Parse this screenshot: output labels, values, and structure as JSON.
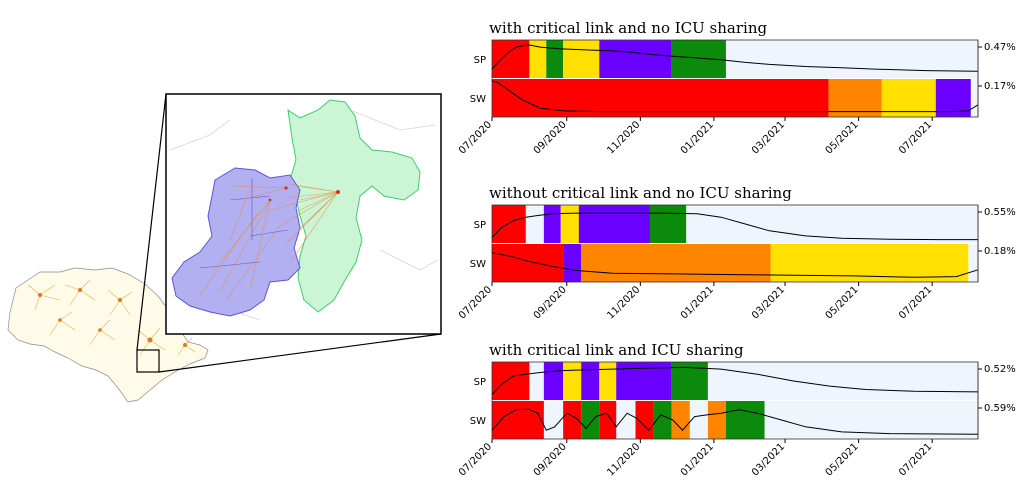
{
  "map_panel": {
    "regions": [
      "State of São Paulo",
      "inset region"
    ],
    "legend": ""
  },
  "chart_data": [
    {
      "type": "timeline",
      "title": "with critical link and no ICU sharing",
      "x_ticks": [
        "07/2020",
        "09/2020",
        "11/2020",
        "01/2021",
        "03/2021",
        "05/2021",
        "07/2021"
      ],
      "x_range": [
        "2020-07-01",
        "2021-08-08"
      ],
      "rows": [
        {
          "label": "SP",
          "peak_label": "0.47%",
          "segments": [
            {
              "start": "2020-07-01",
              "end": "2020-08-01",
              "level": "red"
            },
            {
              "start": "2020-08-01",
              "end": "2020-08-15",
              "level": "yellow"
            },
            {
              "start": "2020-08-15",
              "end": "2020-08-29",
              "level": "green"
            },
            {
              "start": "2020-08-29",
              "end": "2020-09-28",
              "level": "yellow"
            },
            {
              "start": "2020-09-28",
              "end": "2020-11-27",
              "level": "purple"
            },
            {
              "start": "2020-11-27",
              "end": "2021-01-11",
              "level": "green"
            }
          ],
          "curve": [
            [
              0,
              0.8
            ],
            [
              5,
              0.6
            ],
            [
              12,
              0.35
            ],
            [
              20,
              0.15
            ],
            [
              30,
              0.08
            ],
            [
              40,
              0.15
            ],
            [
              55,
              0.2
            ],
            [
              70,
              0.22
            ],
            [
              85,
              0.24
            ],
            [
              100,
              0.26
            ],
            [
              115,
              0.3
            ],
            [
              130,
              0.36
            ],
            [
              150,
              0.42
            ],
            [
              170,
              0.47
            ],
            [
              190,
              0.52
            ],
            [
              210,
              0.6
            ],
            [
              230,
              0.66
            ],
            [
              260,
              0.72
            ],
            [
              290,
              0.76
            ],
            [
              320,
              0.8
            ],
            [
              360,
              0.84
            ],
            [
              403,
              0.86
            ]
          ]
        },
        {
          "label": "SW",
          "peak_label": "0.17%",
          "segments": [
            {
              "start": "2020-07-01",
              "end": "2021-04-06",
              "level": "red"
            },
            {
              "start": "2021-04-06",
              "end": "2021-05-20",
              "level": "orange"
            },
            {
              "start": "2021-05-20",
              "end": "2021-07-04",
              "level": "yellow"
            },
            {
              "start": "2021-07-04",
              "end": "2021-08-02",
              "level": "purple"
            }
          ],
          "curve": [
            [
              0,
              0.0
            ],
            [
              5,
              0.05
            ],
            [
              15,
              0.3
            ],
            [
              25,
              0.55
            ],
            [
              40,
              0.8
            ],
            [
              60,
              0.88
            ],
            [
              90,
              0.9
            ],
            [
              200,
              0.9
            ],
            [
              300,
              0.9
            ],
            [
              380,
              0.9
            ],
            [
              395,
              0.88
            ],
            [
              403,
              0.7
            ]
          ]
        }
      ]
    },
    {
      "type": "timeline",
      "title": "without critical link and no ICU sharing",
      "x_ticks": [
        "07/2020",
        "09/2020",
        "11/2020",
        "01/2021",
        "03/2021",
        "05/2021",
        "07/2021"
      ],
      "x_range": [
        "2020-07-01",
        "2021-08-08"
      ],
      "rows": [
        {
          "label": "SP",
          "peak_label": "0.55%",
          "segments": [
            {
              "start": "2020-07-01",
              "end": "2020-07-29",
              "level": "red"
            },
            {
              "start": "2020-08-13",
              "end": "2020-08-27",
              "level": "purple"
            },
            {
              "start": "2020-08-27",
              "end": "2020-09-11",
              "level": "yellow"
            },
            {
              "start": "2020-09-11",
              "end": "2020-11-09",
              "level": "purple"
            },
            {
              "start": "2020-11-09",
              "end": "2020-12-09",
              "level": "green"
            }
          ],
          "curve": [
            [
              0,
              0.9
            ],
            [
              8,
              0.6
            ],
            [
              18,
              0.4
            ],
            [
              28,
              0.3
            ],
            [
              38,
              0.25
            ],
            [
              50,
              0.2
            ],
            [
              70,
              0.18
            ],
            [
              100,
              0.18
            ],
            [
              140,
              0.18
            ],
            [
              170,
              0.2
            ],
            [
              190,
              0.3
            ],
            [
              210,
              0.5
            ],
            [
              230,
              0.7
            ],
            [
              260,
              0.85
            ],
            [
              290,
              0.92
            ],
            [
              330,
              0.95
            ],
            [
              370,
              0.96
            ],
            [
              403,
              0.96
            ]
          ]
        },
        {
          "label": "SW",
          "peak_label": "0.18%",
          "segments": [
            {
              "start": "2020-07-01",
              "end": "2020-08-29",
              "level": "red"
            },
            {
              "start": "2020-08-29",
              "end": "2020-09-13",
              "level": "purple"
            },
            {
              "start": "2020-09-13",
              "end": "2021-02-17",
              "level": "orange"
            },
            {
              "start": "2021-02-17",
              "end": "2021-07-31",
              "level": "yellow"
            }
          ],
          "curve": [
            [
              0,
              0.2
            ],
            [
              15,
              0.3
            ],
            [
              30,
              0.45
            ],
            [
              50,
              0.6
            ],
            [
              70,
              0.72
            ],
            [
              100,
              0.8
            ],
            [
              150,
              0.82
            ],
            [
              200,
              0.84
            ],
            [
              250,
              0.86
            ],
            [
              300,
              0.88
            ],
            [
              350,
              0.92
            ],
            [
              385,
              0.9
            ],
            [
              403,
              0.7
            ]
          ]
        }
      ]
    },
    {
      "type": "timeline",
      "title": "with critical link and ICU sharing",
      "x_ticks": [
        "07/2020",
        "09/2020",
        "11/2020",
        "01/2021",
        "03/2021",
        "05/2021",
        "07/2021"
      ],
      "x_range": [
        "2020-07-01",
        "2021-08-08"
      ],
      "rows": [
        {
          "label": "SP",
          "peak_label": "0.52%",
          "segments": [
            {
              "start": "2020-07-01",
              "end": "2020-08-01",
              "level": "red"
            },
            {
              "start": "2020-08-13",
              "end": "2020-08-29",
              "level": "purple"
            },
            {
              "start": "2020-08-29",
              "end": "2020-09-13",
              "level": "yellow"
            },
            {
              "start": "2020-09-13",
              "end": "2020-09-28",
              "level": "purple"
            },
            {
              "start": "2020-09-28",
              "end": "2020-10-12",
              "level": "yellow"
            },
            {
              "start": "2020-10-12",
              "end": "2020-11-27",
              "level": "purple"
            },
            {
              "start": "2020-11-27",
              "end": "2020-12-27",
              "level": "green"
            }
          ],
          "curve": [
            [
              0,
              0.9
            ],
            [
              8,
              0.6
            ],
            [
              18,
              0.35
            ],
            [
              28,
              0.3
            ],
            [
              40,
              0.25
            ],
            [
              55,
              0.2
            ],
            [
              70,
              0.18
            ],
            [
              100,
              0.15
            ],
            [
              130,
              0.12
            ],
            [
              160,
              0.1
            ],
            [
              190,
              0.15
            ],
            [
              220,
              0.3
            ],
            [
              250,
              0.5
            ],
            [
              280,
              0.65
            ],
            [
              310,
              0.75
            ],
            [
              350,
              0.8
            ],
            [
              403,
              0.82
            ]
          ]
        },
        {
          "label": "SW",
          "peak_label": "0.59%",
          "segments": [
            {
              "start": "2020-07-01",
              "end": "2020-08-13",
              "level": "red"
            },
            {
              "start": "2020-08-29",
              "end": "2020-09-13",
              "level": "red"
            },
            {
              "start": "2020-09-13",
              "end": "2020-09-28",
              "level": "green"
            },
            {
              "start": "2020-09-28",
              "end": "2020-10-12",
              "level": "red"
            },
            {
              "start": "2020-10-28",
              "end": "2020-11-12",
              "level": "red"
            },
            {
              "start": "2020-11-12",
              "end": "2020-11-27",
              "level": "green"
            },
            {
              "start": "2020-11-27",
              "end": "2020-12-12",
              "level": "orange"
            },
            {
              "start": "2020-12-27",
              "end": "2021-01-11",
              "level": "orange"
            },
            {
              "start": "2021-01-11",
              "end": "2021-02-12",
              "level": "green"
            }
          ],
          "curve": [
            [
              0,
              0.8
            ],
            [
              10,
              0.4
            ],
            [
              20,
              0.2
            ],
            [
              30,
              0.18
            ],
            [
              38,
              0.3
            ],
            [
              45,
              0.8
            ],
            [
              52,
              0.7
            ],
            [
              62,
              0.3
            ],
            [
              70,
              0.45
            ],
            [
              78,
              0.75
            ],
            [
              86,
              0.4
            ],
            [
              95,
              0.3
            ],
            [
              103,
              0.7
            ],
            [
              112,
              0.3
            ],
            [
              120,
              0.45
            ],
            [
              130,
              0.8
            ],
            [
              140,
              0.35
            ],
            [
              150,
              0.5
            ],
            [
              158,
              0.8
            ],
            [
              168,
              0.4
            ],
            [
              178,
              0.35
            ],
            [
              190,
              0.3
            ],
            [
              205,
              0.2
            ],
            [
              220,
              0.3
            ],
            [
              240,
              0.5
            ],
            [
              260,
              0.7
            ],
            [
              290,
              0.85
            ],
            [
              330,
              0.9
            ],
            [
              403,
              0.92
            ]
          ]
        }
      ]
    }
  ],
  "colors": {
    "red": "#ff0000",
    "yellow": "#ffe000",
    "green": "#0b8a0b",
    "purple": "#6a00ff",
    "orange": "#ff8400",
    "background_band": "#eef5fd",
    "map_highlight_purple": "#b3b0f2",
    "map_highlight_green": "#ccf5d6",
    "map_hot": "#e39a1e"
  }
}
